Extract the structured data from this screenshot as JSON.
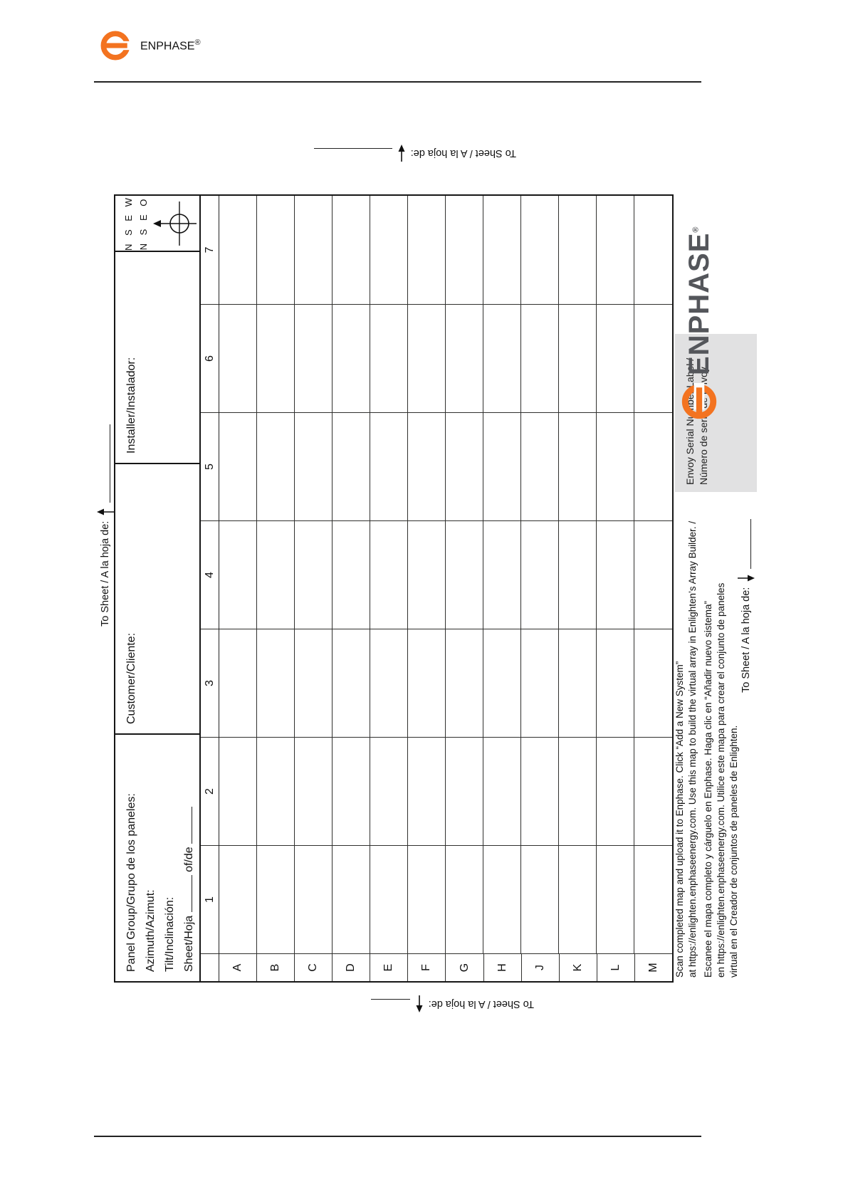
{
  "brand": {
    "name": "ENPHASE",
    "reg": "®"
  },
  "form": {
    "panel_group_label": "Panel Group/Grupo de los paneles:",
    "azimuth_label": "Azimuth/Azimut:",
    "tilt_label": "Tilt/Inclinación:",
    "sheet_label": "Sheet/Hoja",
    "of_label": "of/de",
    "customer_label": "Customer/Cliente:",
    "installer_label": "Installer/Instalador:",
    "compass_line1": "N S E W",
    "compass_line2": "N S E O",
    "to_sheet_label": "To Sheet / A la hoja de:"
  },
  "grid": {
    "cols": 7,
    "rows": 12,
    "col_labels": [
      "1",
      "2",
      "3",
      "4",
      "5",
      "6",
      "7"
    ],
    "row_labels": [
      "A",
      "B",
      "C",
      "D",
      "E",
      "F",
      "G",
      "H",
      "J",
      "K",
      "L",
      "M"
    ]
  },
  "envoy_box": {
    "line1": "Envoy Serial Number Label /",
    "line2": "Número de serie de Envoy"
  },
  "instructions": {
    "en_line1": "Scan completed map and upload it to Enphase. Click “Add a New System”",
    "en_line2": "at https://enlighten.enphaseenergy.com. Use this map to build the virtual array in Enlighten’s Array Builder. /",
    "es_line1": "Escanee el mapa completo y cárguelo en Enphase. Haga clic en “Añadir nuevo sistema”",
    "es_line2": "en https://enlighten.enphaseenergy.com. Utilice este mapa para crear el conjunto de paneles",
    "es_line3": "virtual en el Creador de conjuntos de paneles de Enlighten."
  }
}
